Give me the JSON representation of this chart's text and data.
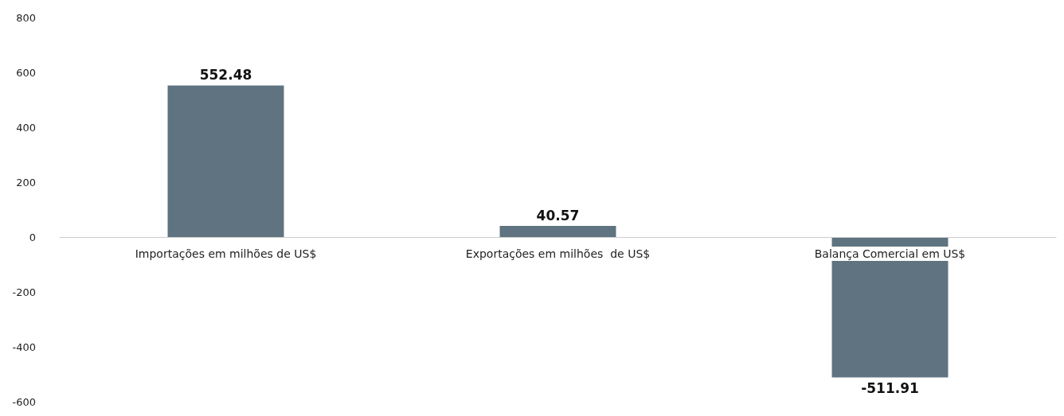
{
  "chart_data": {
    "type": "bar",
    "categories": [
      "Importações em milhões de US$",
      "Exportações em milhões  de US$",
      "Balança Comercial em US$"
    ],
    "values": [
      552.48,
      40.57,
      -511.91
    ],
    "color": "#5f7380",
    "ylim": [
      -600,
      800
    ],
    "yticks": [
      -600,
      -400,
      -200,
      0,
      200,
      400,
      600,
      800
    ],
    "grid": false,
    "data_labels": true
  }
}
